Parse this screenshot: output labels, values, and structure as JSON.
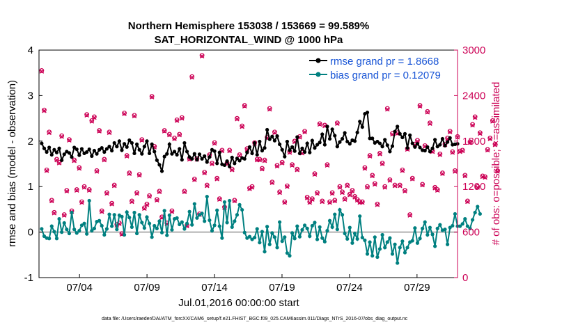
{
  "chart_data": {
    "type": "line",
    "title": "Northern Hemisphere 153038 / 153669 = 99.589%",
    "subtitle": "SAT_HORIZONTAL_WIND @ 1000 hPa",
    "xlabel": "Jul.01,2016 00:00:00 start",
    "ylabel_left": "rmse and bias (model - observation)",
    "ylabel_right": "# of obs: o=possible; ×=assimilated",
    "footnote": "data file: /Users/raeder/DAI/ATM_forcXX/CAM6_setup/f.e21.FHIST_BGC.f09_025.CAM6assim.011/Diags_NTrS_2016-07/obs_diag_output.nc",
    "x_range": [
      1,
      32
    ],
    "ylim_left": [
      -1,
      4
    ],
    "ylim_right": [
      0,
      3000
    ],
    "yticks_left": [
      "-1",
      "0",
      "1",
      "2",
      "3",
      "4"
    ],
    "yticks_right": [
      "0",
      "600",
      "1200",
      "1800",
      "2400",
      "3000"
    ],
    "xticks": [
      {
        "day": 4,
        "label": "07/04"
      },
      {
        "day": 9,
        "label": "07/09"
      },
      {
        "day": 14,
        "label": "07/14"
      },
      {
        "day": 19,
        "label": "07/19"
      },
      {
        "day": 24,
        "label": "07/24"
      },
      {
        "day": 29,
        "label": "07/29"
      }
    ],
    "series": [
      {
        "name": "rmse grand pr = 1.8668",
        "color": "#000000",
        "axis": "left",
        "values": [
          1.95,
          1.84,
          1.76,
          1.86,
          1.7,
          1.81,
          1.75,
          1.84,
          1.58,
          1.71,
          1.77,
          1.74,
          1.65,
          1.86,
          1.82,
          1.69,
          1.83,
          1.73,
          1.76,
          1.82,
          1.67,
          1.79,
          1.72,
          1.81,
          1.85,
          1.76,
          1.83,
          1.88,
          1.79,
          1.96,
          1.88,
          2.0,
          1.8,
          1.94,
          1.87,
          2.02,
          1.96,
          1.73,
          1.93,
          1.81,
          1.72,
          1.88,
          2.0,
          1.73,
          1.93,
          1.77,
          1.58,
          1.48,
          1.34,
          1.66,
          1.72,
          1.93,
          1.72,
          1.77,
          1.7,
          1.83,
          1.59,
          1.96,
          1.77,
          1.65,
          1.61,
          1.72,
          1.59,
          1.71,
          1.61,
          1.67,
          1.54,
          1.65,
          1.81,
          1.78,
          1.51,
          1.75,
          1.49,
          1.47,
          1.56,
          1.44,
          1.64,
          1.51,
          1.62,
          1.57,
          1.63,
          1.61,
          1.75,
          1.87,
          1.73,
          1.96,
          1.7,
          1.99,
          1.79,
          1.85,
          2.25,
          2.04,
          2.1,
          2.01,
          2.11,
          1.93,
          1.81,
          1.66,
          1.99,
          1.8,
          1.87,
          1.78,
          2.09,
          1.73,
          1.84,
          1.76,
          1.95,
          1.75,
          2.01,
          1.85,
          1.92,
          1.97,
          2.15,
          1.92,
          2.32,
          2.05,
          2.26,
          2.12,
          1.88,
          1.98,
          2.05,
          2.18,
          1.99,
          1.94,
          2.02,
          2.0,
          2.19,
          2.43,
          2.31,
          2.6,
          2.63,
          2.06,
          2.06,
          1.96,
          1.99,
          1.95,
          1.88,
          2.03,
          1.91,
          1.77,
          1.89,
          2.21,
          2.32,
          2.16,
          2.08,
          2.16,
          1.85,
          2.13,
          1.95,
          1.87,
          1.94,
          1.86,
          1.8,
          1.79,
          1.87,
          1.77,
          1.84,
          2.03,
          1.88,
          1.92,
          2.05,
          1.9,
          1.98,
          2.07,
          1.92,
          1.93,
          1.94
        ]
      },
      {
        "name": "bias grand pr = 0.12079",
        "color": "#008080",
        "axis": "left",
        "values": [
          0.07,
          -0.09,
          -0.13,
          -0.14,
          0.13,
          0.01,
          -0.14,
          0.29,
          0.0,
          0.2,
          0.06,
          -0.03,
          0.43,
          0.06,
          -0.02,
          0.03,
          0.15,
          0.19,
          -0.04,
          0.69,
          0.03,
          0.08,
          0.23,
          0.25,
          0.14,
          -0.06,
          0.07,
          0.39,
          0.13,
          0.38,
          0.06,
          0.37,
          0.34,
          -0.06,
          0.44,
          0.32,
          0.11,
          0.43,
          -0.03,
          0.38,
          0.21,
          0.09,
          0.33,
          0.19,
          -0.11,
          0.14,
          0.08,
          0.24,
          -0.01,
          0.47,
          -0.07,
          0.37,
          0.05,
          0.29,
          0.31,
          0.17,
          0.22,
          0.07,
          0.19,
          0.45,
          0.16,
          0.62,
          0.31,
          0.38,
          0.41,
          0.24,
          0.78,
          0.26,
          0.03,
          0.15,
          0.48,
          0.13,
          -0.13,
          0.66,
          0.21,
          0.69,
          0.11,
          0.24,
          0.38,
          0.6,
          0.49,
          -0.01,
          -0.13,
          -0.1,
          -0.16,
          -0.12,
          0.07,
          -0.23,
          0.01,
          -0.43,
          0.12,
          -0.27,
          -0.02,
          -0.11,
          -0.34,
          0.22,
          -0.2,
          -0.11,
          -0.46,
          -0.52,
          -0.02,
          -0.14,
          0.13,
          -0.1,
          0.05,
          0.15,
          0.08,
          -0.09,
          0.14,
          0.21,
          -0.16,
          0.11,
          -0.13,
          -0.21,
          0.03,
          0.25,
          0.11,
          0.39,
          0.06,
          0.49,
          0.38,
          -0.03,
          -0.15,
          0.1,
          -0.24,
          -0.03,
          -0.15,
          0.35,
          -0.12,
          -0.18,
          -0.48,
          -0.22,
          -0.52,
          -0.11,
          -0.55,
          -0.37,
          -0.06,
          -0.34,
          -0.22,
          -0.13,
          -0.48,
          -0.27,
          -0.68,
          -0.34,
          -0.2,
          -0.45,
          -0.34,
          -0.22,
          -0.19,
          0.09,
          -0.24,
          -0.14,
          0.08,
          0.22,
          -0.06,
          0.1,
          -0.05,
          -0.31,
          0.08,
          0.16,
          0.04,
          0.06,
          -0.27,
          0.1,
          0.14,
          0.4,
          0.13,
          0.13,
          0.18,
          0.29,
          0.13,
          0.08,
          0.27,
          0.43,
          0.56,
          0.4
        ]
      }
    ],
    "obs_possible": {
      "axis": "right",
      "color": "#cc0055",
      "values": [
        2730,
        2210,
        1420,
        1920,
        1020,
        860,
        1560,
        1520,
        1870,
        830,
        1150,
        1820,
        880,
        1550,
        1160,
        1450,
        1000,
        1200,
        2150,
        1160,
        2070,
        2120,
        1410,
        1940,
        880,
        1560,
        1120,
        1920,
        980,
        1220,
        700,
        720,
        580,
        2170,
        1610,
        1380,
        1010,
        2140,
        1120,
        1360,
        1820,
        920,
        970,
        1080,
        2390,
        1730,
        1030,
        1140,
        800,
        1940,
        720,
        1890,
        880,
        1840,
        2080,
        1890,
        2110,
        1140,
        690,
        1570,
        2650,
        1300,
        1570,
        840,
        2930,
        1390,
        1220,
        1620,
        1510,
        1780,
        1310,
        1040,
        1680,
        930,
        1510,
        1680,
        1430,
        1020,
        2100,
        1620,
        2000,
        2270,
        1700,
        1180,
        1200,
        1780,
        1560,
        1560,
        1440,
        1550,
        1850,
        2230,
        1260,
        1920,
        1480,
        1130,
        1520,
        1000,
        1210,
        1660,
        1490,
        1800,
        1430,
        1860,
        1650,
        1930,
        1060,
        1000,
        1040,
        1370,
        1120,
        2030,
        1010,
        2010,
        1490,
        1000,
        1120,
        1020,
        2040,
        1200,
        1130,
        1040,
        1220,
        1100,
        1150,
        1070,
        1030,
        1000,
        1000,
        1450,
        1200,
        1610,
        1350,
        1240,
        970,
        1640,
        1510,
        1200,
        2230,
        1290,
        1900,
        1220,
        1910,
        1220,
        1420,
        1150,
        1700,
        830,
        1310,
        1760,
        1810,
        2270,
        1230,
        1740,
        2190,
        2040,
        1670,
        1190,
        1160,
        1630,
        1380,
        1760,
        1840,
        1930,
        1660,
        1410,
        1860,
        1670,
        1680,
        1350,
        1010,
        1790,
        2020,
        2120,
        1200,
        1910,
        1340,
        1330,
        1690,
        1840,
        2070,
        1760,
        1410
      ]
    },
    "obs_assimilated": {
      "axis": "right",
      "color": "#cc0055",
      "values": [
        2720,
        2200,
        1410,
        1910,
        1010,
        850,
        1550,
        1510,
        1860,
        820,
        1140,
        1810,
        870,
        1540,
        1150,
        1440,
        990,
        1190,
        2140,
        1150,
        2060,
        2110,
        1400,
        1930,
        870,
        1550,
        1110,
        1910,
        970,
        1210,
        690,
        710,
        570,
        2160,
        1600,
        1370,
        1000,
        2130,
        1110,
        1350,
        1810,
        910,
        960,
        1070,
        2380,
        1720,
        1020,
        1130,
        790,
        1930,
        710,
        1880,
        870,
        1830,
        2070,
        1880,
        2100,
        1130,
        680,
        1560,
        2640,
        1290,
        1560,
        830,
        2920,
        1380,
        1210,
        1610,
        1500,
        1770,
        1300,
        1030,
        1670,
        920,
        1500,
        1670,
        1420,
        1010,
        2090,
        1610,
        1990,
        2260,
        1690,
        1170,
        1190,
        1770,
        1550,
        1550,
        1430,
        1540,
        1840,
        2220,
        1250,
        1910,
        1470,
        1120,
        1510,
        990,
        1200,
        1650,
        1480,
        1790,
        1420,
        1850,
        1640,
        1920,
        1050,
        990,
        1030,
        1360,
        1110,
        2020,
        1000,
        2000,
        1480,
        990,
        1110,
        1010,
        2030,
        1190,
        1120,
        1030,
        1210,
        1090,
        1140,
        1060,
        1020,
        990,
        990,
        1440,
        1190,
        1600,
        1340,
        1230,
        960,
        1630,
        1500,
        1190,
        2220,
        1280,
        1890,
        1210,
        1900,
        1210,
        1410,
        1140,
        1690,
        820,
        1300,
        1750,
        1800,
        2260,
        1220,
        1730,
        2180,
        2030,
        1660,
        1180,
        1150,
        1620,
        1370,
        1750,
        1830,
        1920,
        1650,
        1400,
        1850,
        1660,
        1670,
        1340,
        1000,
        1780,
        2010,
        2110,
        1190,
        1900,
        1330,
        1320,
        1680,
        1830,
        2060,
        1750,
        1400
      ]
    }
  }
}
